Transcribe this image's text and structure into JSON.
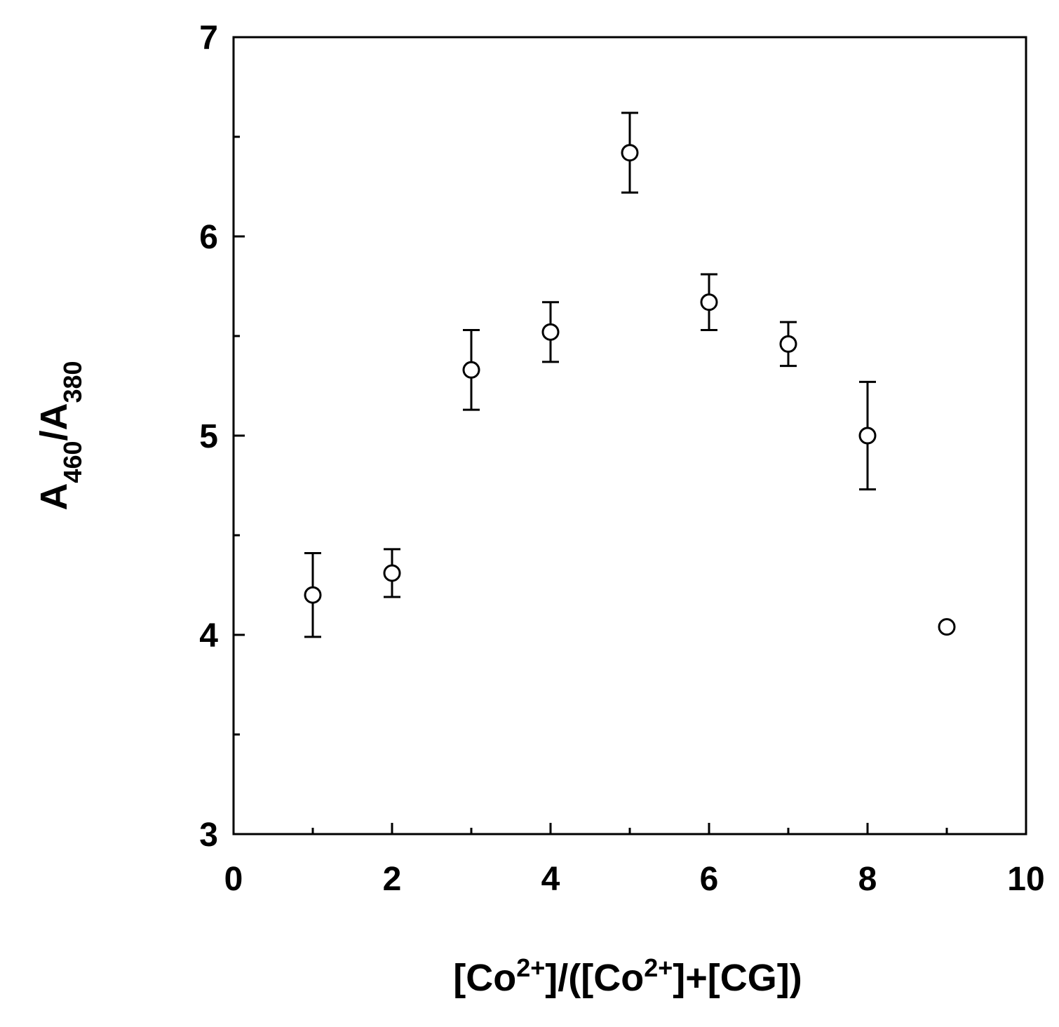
{
  "chart_data": {
    "type": "scatter",
    "xlabel": [
      {
        "text": "[Co"
      },
      {
        "text": "2+",
        "shift": "super"
      },
      {
        "text": "]/([Co"
      },
      {
        "text": "2+",
        "shift": "super"
      },
      {
        "text": "]+[CG])"
      }
    ],
    "ylabel": [
      {
        "text": "A"
      },
      {
        "text": "460",
        "shift": "sub"
      },
      {
        "text": "/A"
      },
      {
        "text": "380",
        "shift": "sub"
      }
    ],
    "x": [
      1,
      2,
      3,
      4,
      5,
      6,
      7,
      8,
      9
    ],
    "series": [
      {
        "color": "#000000",
        "values": [
          4.2,
          4.31,
          5.33,
          5.52,
          6.42,
          5.67,
          5.46,
          5.0,
          4.04
        ],
        "errors": [
          0.21,
          0.12,
          0.2,
          0.15,
          0.2,
          0.14,
          0.11,
          0.27,
          0.01
        ]
      }
    ],
    "xlim": [
      0,
      10
    ],
    "ylim": [
      3,
      7
    ],
    "xticks": [
      0,
      2,
      4,
      6,
      8,
      10
    ],
    "yticks": [
      3,
      4,
      5,
      6,
      7
    ],
    "xminor": [
      1,
      3,
      5,
      7,
      9
    ],
    "yminor": [
      3.5,
      4.5,
      5.5,
      6.5
    ]
  }
}
